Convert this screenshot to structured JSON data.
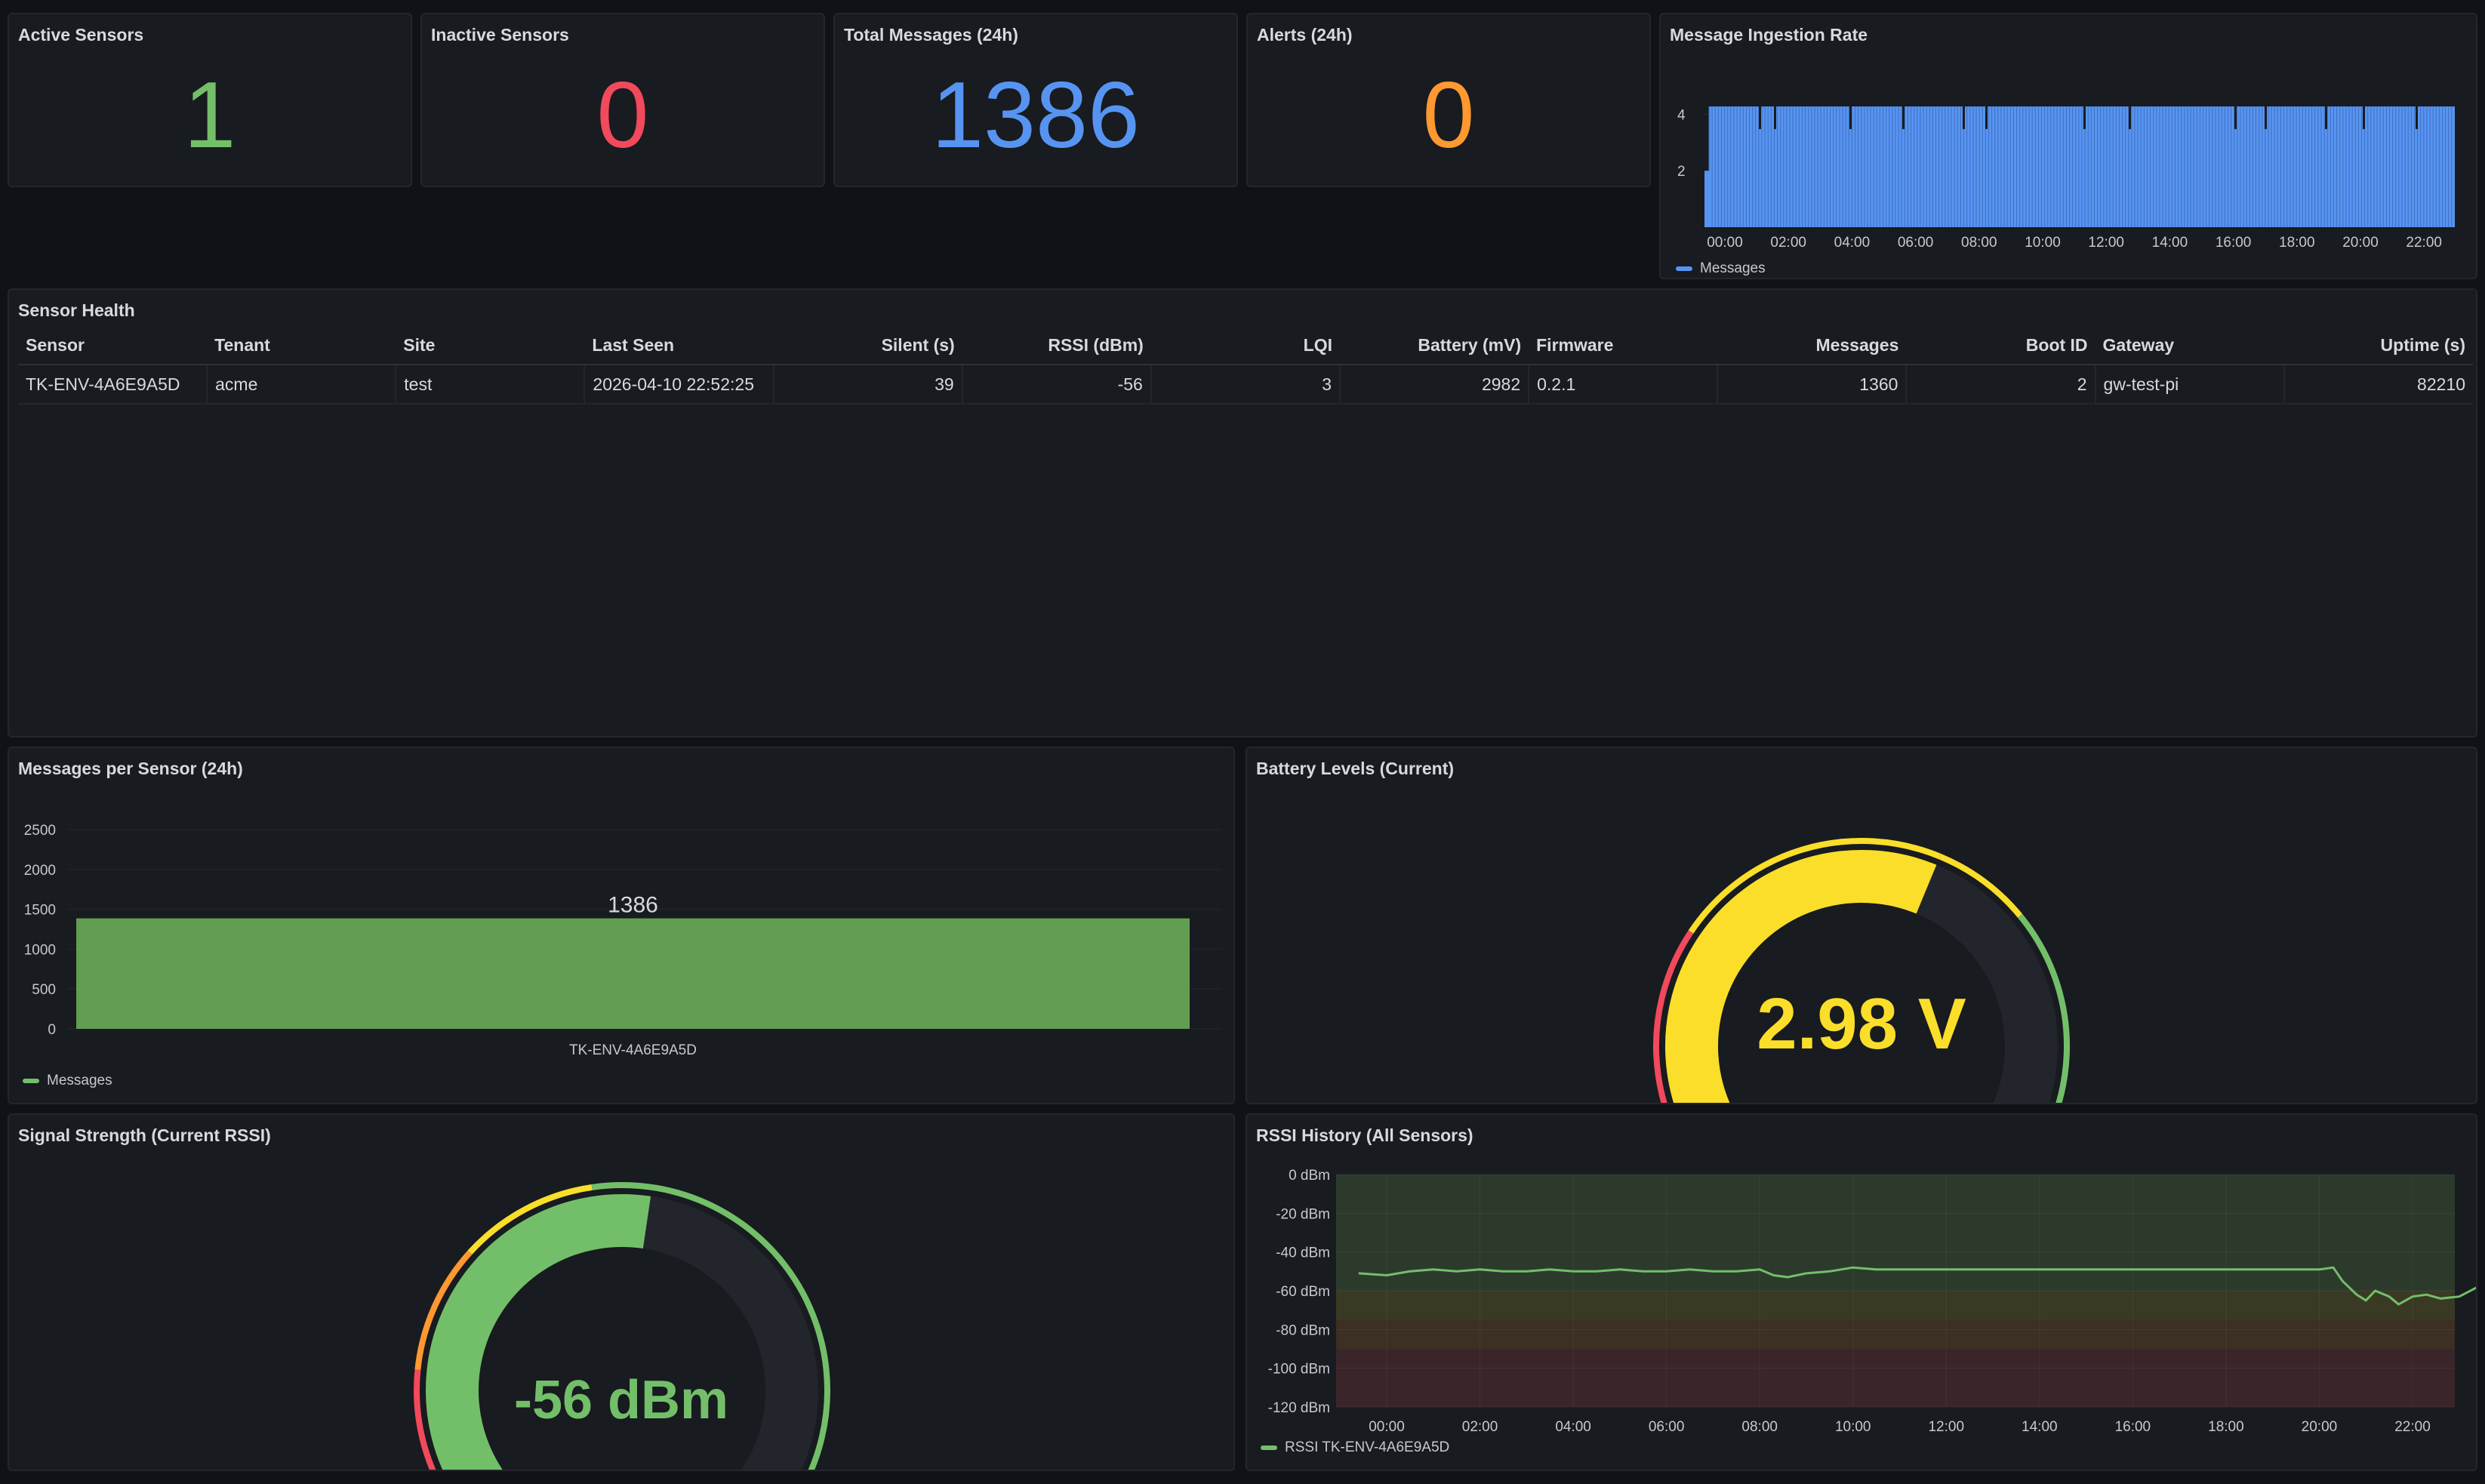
{
  "stats": [
    {
      "title": "Active Sensors",
      "value": "1",
      "color": "#73bf69"
    },
    {
      "title": "Inactive Sensors",
      "value": "0",
      "color": "#f2495c"
    },
    {
      "title": "Total Messages (24h)",
      "value": "1386",
      "color": "#5794f2"
    },
    {
      "title": "Alerts (24h)",
      "value": "0",
      "color": "#ff9830"
    }
  ],
  "ingestion": {
    "title": "Message Ingestion Rate",
    "legend": "Messages",
    "color": "#5794f2",
    "y_ticks": [
      "2",
      "4"
    ],
    "x_ticks": [
      "00:00",
      "02:00",
      "04:00",
      "06:00",
      "08:00",
      "10:00",
      "12:00",
      "14:00",
      "16:00",
      "18:00",
      "20:00",
      "22:00"
    ]
  },
  "table": {
    "title": "Sensor Health",
    "columns": [
      "Sensor",
      "Tenant",
      "Site",
      "Last Seen",
      "Silent (s)",
      "RSSI (dBm)",
      "LQI",
      "Battery (mV)",
      "Firmware",
      "Messages",
      "Boot ID",
      "Gateway",
      "Uptime (s)"
    ],
    "rows": [
      [
        "TK-ENV-4A6E9A5D",
        "acme",
        "test",
        "2026-04-10 22:52:25",
        "39",
        "-56",
        "3",
        "2982",
        "0.2.1",
        "1360",
        "2",
        "gw-test-pi",
        "82210"
      ]
    ]
  },
  "messages_per_sensor": {
    "title": "Messages per Sensor (24h)",
    "legend": "Messages",
    "color": "#629e51",
    "y_ticks": [
      "0",
      "500",
      "1000",
      "1500",
      "2000",
      "2500"
    ],
    "chart_data": {
      "type": "bar",
      "categories": [
        "TK-ENV-4A6E9A5D"
      ],
      "values": [
        1386
      ],
      "value_labels": [
        "1386"
      ],
      "ylim": [
        0,
        2700
      ]
    }
  },
  "battery": {
    "title": "Battery Levels (Current)",
    "value_text": "2.98 V",
    "value": 2.98,
    "fill_fraction": 0.58,
    "color": "#fade2a"
  },
  "signal": {
    "title": "Signal Strength (Current RSSI)",
    "value_text": "-56 dBm",
    "value": -56,
    "fill_fraction": 0.53,
    "color": "#73bf69"
  },
  "rssi_history": {
    "title": "RSSI History (All Sensors)",
    "legend": "RSSI TK-ENV-4A6E9A5D",
    "color": "#73bf69",
    "y_ticks": [
      "0 dBm",
      "-20 dBm",
      "-40 dBm",
      "-60 dBm",
      "-80 dBm",
      "-100 dBm",
      "-120 dBm"
    ],
    "x_ticks": [
      "00:00",
      "02:00",
      "04:00",
      "06:00",
      "08:00",
      "10:00",
      "12:00",
      "14:00",
      "16:00",
      "18:00",
      "20:00",
      "22:00"
    ],
    "chart_data": {
      "type": "line",
      "series": [
        {
          "name": "RSSI TK-ENV-4A6E9A5D",
          "x": [
            -0.6,
            0,
            0.5,
            1,
            1.5,
            2,
            2.5,
            3,
            3.5,
            4,
            4.5,
            5,
            5.5,
            6,
            6.5,
            7,
            7.5,
            8,
            8.3,
            8.6,
            9,
            9.5,
            10,
            10.5,
            11,
            12,
            13,
            14,
            15,
            16,
            17,
            18,
            19,
            20,
            20.3,
            20.5,
            20.8,
            21,
            21.2,
            21.5,
            21.7,
            22,
            22.3,
            22.6,
            23,
            23.4
          ],
          "y": [
            -51,
            -52,
            -50,
            -49,
            -50,
            -49,
            -50,
            -50,
            -49,
            -50,
            -50,
            -49,
            -50,
            -50,
            -49,
            -50,
            -50,
            -49,
            -52,
            -53,
            -51,
            -50,
            -48,
            -49,
            -49,
            -49,
            -49,
            -49,
            -49,
            -49,
            -49,
            -49,
            -49,
            -49,
            -48,
            -55,
            -62,
            -65,
            -60,
            -63,
            -67,
            -63,
            -62,
            -64,
            -63,
            -58
          ]
        }
      ],
      "ylim": [
        -120,
        0
      ]
    }
  }
}
